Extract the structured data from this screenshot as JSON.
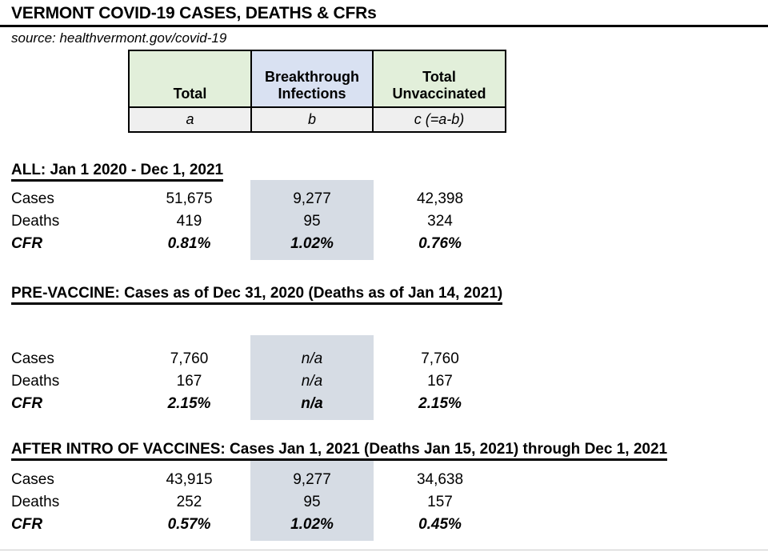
{
  "page": {
    "title": "VERMONT COVID-19 CASES, DEATHS & CFRs",
    "source": "source: healthvermont.gov/covid-19"
  },
  "legend": {
    "columns": [
      {
        "label": "Total",
        "formula": "a"
      },
      {
        "label": "Breakthrough Infections",
        "formula": "b"
      },
      {
        "label": "Total Unvaccinated",
        "formula": "c (=a-b)"
      }
    ]
  },
  "sections": [
    {
      "heading": "ALL: Jan 1 2020 - Dec 1, 2021",
      "rows": [
        {
          "label": "Cases",
          "total": "51,675",
          "breakthrough": "9,277",
          "unvaccinated": "42,398"
        },
        {
          "label": "Deaths",
          "total": "419",
          "breakthrough": "95",
          "unvaccinated": "324"
        },
        {
          "label": "CFR",
          "total": "0.81%",
          "breakthrough": "1.02%",
          "unvaccinated": "0.76%"
        }
      ]
    },
    {
      "heading": "PRE-VACCINE: Cases as of Dec 31, 2020 (Deaths as of Jan 14, 2021)",
      "rows": [
        {
          "label": "Cases",
          "total": "7,760",
          "breakthrough": "n/a",
          "unvaccinated": "7,760"
        },
        {
          "label": "Deaths",
          "total": "167",
          "breakthrough": "n/a",
          "unvaccinated": "167"
        },
        {
          "label": "CFR",
          "total": "2.15%",
          "breakthrough": "n/a",
          "unvaccinated": "2.15%"
        }
      ]
    },
    {
      "heading": "AFTER INTRO OF VACCINES: Cases Jan 1, 2021 (Deaths Jan 15, 2021) through Dec 1, 2021",
      "rows": [
        {
          "label": "Cases",
          "total": "43,915",
          "breakthrough": "9,277",
          "unvaccinated": "34,638"
        },
        {
          "label": "Deaths",
          "total": "252",
          "breakthrough": "95",
          "unvaccinated": "157"
        },
        {
          "label": "CFR",
          "total": "0.57%",
          "breakthrough": "1.02%",
          "unvaccinated": "0.45%"
        }
      ]
    }
  ],
  "colors": {
    "legend_green": "#E2EFDA",
    "legend_blue": "#D9E1F2",
    "legend_formula_bg": "#EFEFEF",
    "breakthrough_shade": "#D6DCE4",
    "border": "#000000"
  }
}
